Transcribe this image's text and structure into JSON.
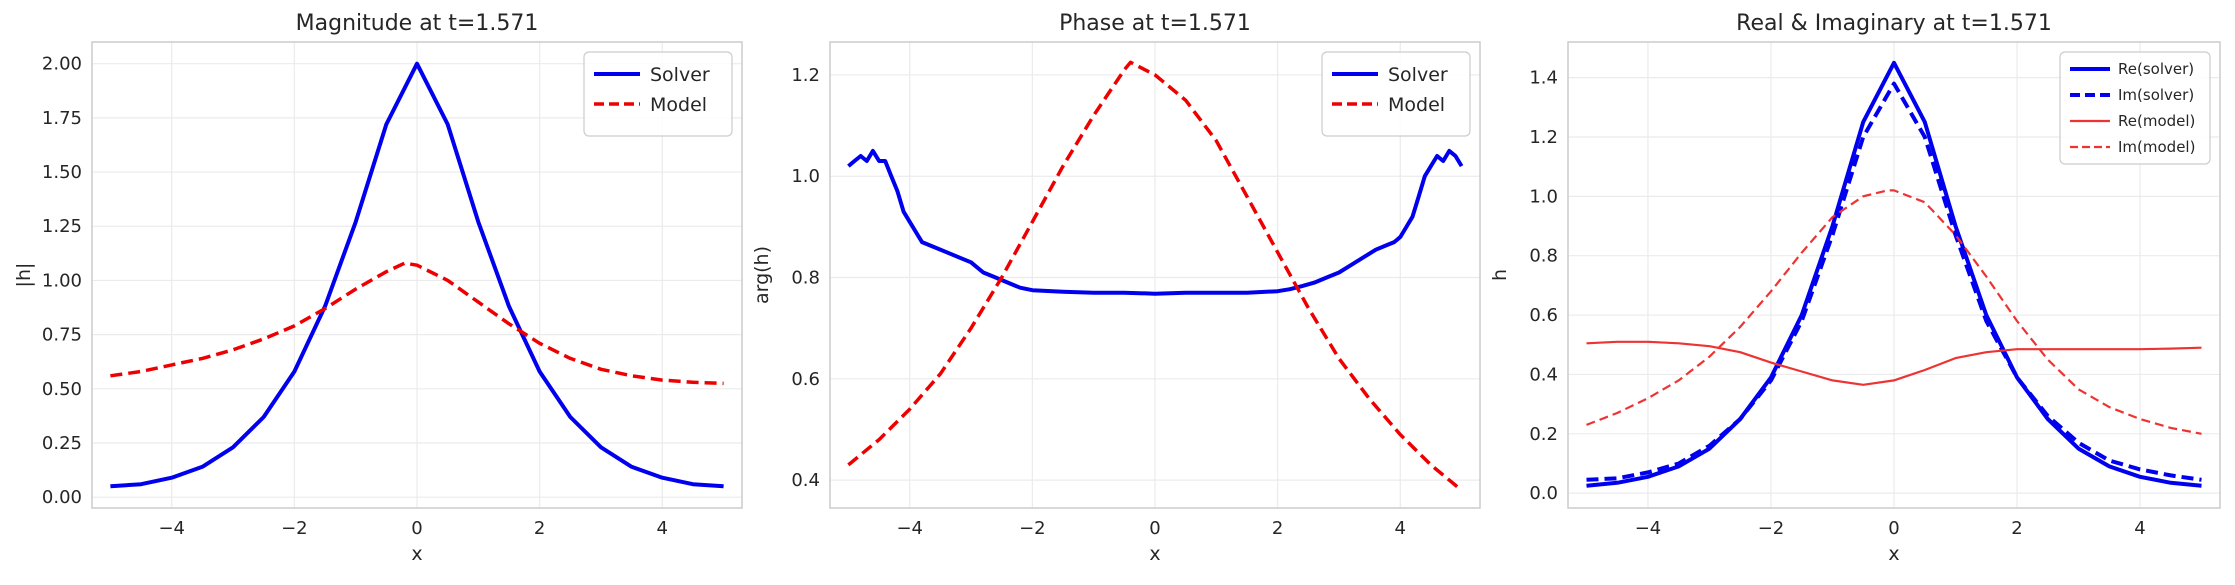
{
  "chart_data": [
    {
      "type": "line",
      "title": "Magnitude at t=1.571",
      "xlabel": "x",
      "ylabel": "|h|",
      "xlim": [
        -5.3,
        5.3
      ],
      "ylim": [
        -0.05,
        2.1
      ],
      "xticks": [
        -4,
        -2,
        0,
        2,
        4
      ],
      "yticks": [
        0.0,
        0.25,
        0.5,
        0.75,
        1.0,
        1.25,
        1.5,
        1.75,
        2.0
      ],
      "ytick_labels": [
        "0.00",
        "0.25",
        "0.50",
        "0.75",
        "1.00",
        "1.25",
        "1.50",
        "1.75",
        "2.00"
      ],
      "grid": true,
      "legend": "top-right",
      "series": [
        {
          "name": "Solver",
          "color": "#0000ee",
          "style": "solid",
          "width": 4,
          "x": [
            -5,
            -4.5,
            -4,
            -3.5,
            -3,
            -2.5,
            -2,
            -1.5,
            -1,
            -0.5,
            0,
            0.5,
            1,
            1.5,
            2,
            2.5,
            3,
            3.5,
            4,
            4.5,
            5
          ],
          "y": [
            0.05,
            0.06,
            0.09,
            0.14,
            0.23,
            0.37,
            0.58,
            0.88,
            1.27,
            1.72,
            2.0,
            1.72,
            1.27,
            0.88,
            0.58,
            0.37,
            0.23,
            0.14,
            0.09,
            0.06,
            0.05
          ]
        },
        {
          "name": "Model",
          "color": "#ee0000",
          "style": "dashed",
          "width": 3.5,
          "x": [
            -5,
            -4.5,
            -4,
            -3.5,
            -3,
            -2.5,
            -2,
            -1.5,
            -1,
            -0.5,
            -0.2,
            0,
            0.5,
            1,
            1.5,
            2,
            2.5,
            3,
            3.5,
            4,
            4.5,
            5
          ],
          "y": [
            0.56,
            0.58,
            0.61,
            0.64,
            0.68,
            0.73,
            0.79,
            0.87,
            0.96,
            1.04,
            1.08,
            1.07,
            1.0,
            0.9,
            0.8,
            0.71,
            0.64,
            0.59,
            0.56,
            0.54,
            0.53,
            0.525
          ]
        }
      ]
    },
    {
      "type": "line",
      "title": "Phase at t=1.571",
      "xlabel": "x",
      "ylabel": "arg(h)",
      "xlim": [
        -5.3,
        5.3
      ],
      "ylim": [
        0.345,
        1.265
      ],
      "xticks": [
        -4,
        -2,
        0,
        2,
        4
      ],
      "yticks": [
        0.4,
        0.6,
        0.8,
        1.0,
        1.2
      ],
      "ytick_labels": [
        "0.4",
        "0.6",
        "0.8",
        "1.0",
        "1.2"
      ],
      "grid": true,
      "legend": "top-right",
      "series": [
        {
          "name": "Solver",
          "color": "#0000ee",
          "style": "solid",
          "width": 4,
          "x": [
            -5,
            -4.9,
            -4.8,
            -4.7,
            -4.6,
            -4.5,
            -4.4,
            -4.3,
            -4.2,
            -4.1,
            -4.0,
            -3.9,
            -3.8,
            -3.6,
            -3.4,
            -3.2,
            -3.0,
            -2.8,
            -2.6,
            -2.4,
            -2.2,
            -2.0,
            -1.5,
            -1.0,
            -0.5,
            0,
            0.5,
            1.0,
            1.5,
            2.0,
            2.2,
            2.4,
            2.6,
            2.8,
            3.0,
            3.2,
            3.4,
            3.6,
            3.8,
            3.9,
            4.0,
            4.1,
            4.2,
            4.3,
            4.4,
            4.5,
            4.6,
            4.7,
            4.8,
            4.9,
            5.0
          ],
          "y": [
            1.02,
            1.03,
            1.04,
            1.03,
            1.05,
            1.03,
            1.03,
            1.0,
            0.97,
            0.93,
            0.91,
            0.89,
            0.87,
            0.86,
            0.85,
            0.84,
            0.83,
            0.81,
            0.8,
            0.79,
            0.78,
            0.775,
            0.772,
            0.77,
            0.77,
            0.768,
            0.77,
            0.77,
            0.77,
            0.773,
            0.777,
            0.783,
            0.79,
            0.8,
            0.81,
            0.825,
            0.84,
            0.855,
            0.865,
            0.87,
            0.88,
            0.9,
            0.92,
            0.96,
            1.0,
            1.02,
            1.04,
            1.03,
            1.05,
            1.04,
            1.02
          ]
        },
        {
          "name": "Model",
          "color": "#ee0000",
          "style": "dashed",
          "width": 3.5,
          "x": [
            -5,
            -4.5,
            -4,
            -3.5,
            -3,
            -2.5,
            -2,
            -1.5,
            -1,
            -0.5,
            -0.4,
            0,
            0.5,
            1,
            1.5,
            2,
            2.5,
            3,
            3.5,
            4,
            4.5,
            5
          ],
          "y": [
            0.43,
            0.48,
            0.54,
            0.61,
            0.7,
            0.8,
            0.91,
            1.02,
            1.12,
            1.21,
            1.225,
            1.2,
            1.15,
            1.07,
            0.96,
            0.85,
            0.74,
            0.64,
            0.56,
            0.49,
            0.43,
            0.38
          ]
        }
      ]
    },
    {
      "type": "line",
      "title": "Real & Imaginary at t=1.571",
      "xlabel": "x",
      "ylabel": "h",
      "xlim": [
        -5.3,
        5.3
      ],
      "ylim": [
        -0.05,
        1.52
      ],
      "xticks": [
        -4,
        -2,
        0,
        2,
        4
      ],
      "yticks": [
        0.0,
        0.2,
        0.4,
        0.6,
        0.8,
        1.0,
        1.2,
        1.4
      ],
      "ytick_labels": [
        "0.0",
        "0.2",
        "0.4",
        "0.6",
        "0.8",
        "1.0",
        "1.2",
        "1.4"
      ],
      "grid": true,
      "legend": "top-right",
      "series": [
        {
          "name": "Re(solver)",
          "color": "#0000ee",
          "style": "solid",
          "width": 4,
          "x": [
            -5,
            -4.5,
            -4,
            -3.5,
            -3,
            -2.5,
            -2,
            -1.5,
            -1,
            -0.5,
            0,
            0.5,
            1,
            1.5,
            2,
            2.5,
            3,
            3.5,
            4,
            4.5,
            5
          ],
          "y": [
            0.025,
            0.035,
            0.055,
            0.09,
            0.15,
            0.25,
            0.39,
            0.6,
            0.9,
            1.25,
            1.45,
            1.25,
            0.9,
            0.6,
            0.39,
            0.25,
            0.15,
            0.09,
            0.055,
            0.035,
            0.025
          ]
        },
        {
          "name": "Im(solver)",
          "color": "#0000ee",
          "style": "dashed",
          "width": 4,
          "x": [
            -5,
            -4.5,
            -4,
            -3.5,
            -3,
            -2.5,
            -2,
            -1.5,
            -1,
            -0.5,
            0,
            0.5,
            1,
            1.5,
            2,
            2.5,
            3,
            3.5,
            4,
            4.5,
            5
          ],
          "y": [
            0.045,
            0.05,
            0.07,
            0.1,
            0.16,
            0.25,
            0.38,
            0.58,
            0.87,
            1.2,
            1.38,
            1.2,
            0.87,
            0.58,
            0.39,
            0.26,
            0.17,
            0.11,
            0.08,
            0.06,
            0.045
          ]
        },
        {
          "name": "Re(model)",
          "color": "#ee3333",
          "style": "solid",
          "width": 2.2,
          "x": [
            -5,
            -4.5,
            -4,
            -3.5,
            -3,
            -2.5,
            -2,
            -1.5,
            -1,
            -0.5,
            0,
            0.5,
            1,
            1.5,
            2,
            2.5,
            3,
            3.5,
            4,
            4.5,
            5
          ],
          "y": [
            0.505,
            0.51,
            0.51,
            0.505,
            0.495,
            0.475,
            0.44,
            0.41,
            0.38,
            0.365,
            0.38,
            0.415,
            0.455,
            0.475,
            0.485,
            0.485,
            0.485,
            0.485,
            0.485,
            0.487,
            0.49
          ]
        },
        {
          "name": "Im(model)",
          "color": "#ee3333",
          "style": "dashed",
          "width": 2.2,
          "x": [
            -5,
            -4.5,
            -4,
            -3.5,
            -3,
            -2.5,
            -2,
            -1.5,
            -1,
            -0.5,
            -0.1,
            0,
            0.5,
            1,
            1.5,
            2,
            2.5,
            3,
            3.5,
            4,
            4.5,
            5
          ],
          "y": [
            0.23,
            0.27,
            0.32,
            0.38,
            0.46,
            0.56,
            0.68,
            0.81,
            0.93,
            1.0,
            1.02,
            1.02,
            0.98,
            0.87,
            0.73,
            0.58,
            0.45,
            0.35,
            0.29,
            0.25,
            0.22,
            0.2
          ]
        }
      ]
    }
  ]
}
